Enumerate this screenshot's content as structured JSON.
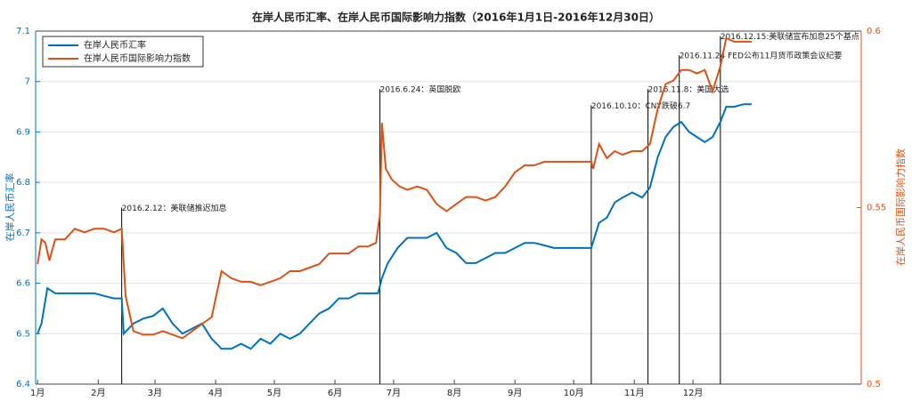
{
  "chart_data": {
    "type": "line",
    "title": "在岸人民币汇率、在岸人民币国际影响力指数（2016年1月1日-2016年12月30日）",
    "ylabel": "在岸人民币汇率",
    "y2label": "在岸人民币国际影响力指数",
    "xlim": [
      0,
      422
    ],
    "xticks": [
      {
        "value": 1,
        "label": "1月"
      },
      {
        "value": 32,
        "label": "2月"
      },
      {
        "value": 61,
        "label": "3月"
      },
      {
        "value": 92,
        "label": "4月"
      },
      {
        "value": 122,
        "label": "5月"
      },
      {
        "value": 153,
        "label": "6月"
      },
      {
        "value": 183,
        "label": "7月"
      },
      {
        "value": 214,
        "label": "8月"
      },
      {
        "value": 245,
        "label": "9月"
      },
      {
        "value": 275,
        "label": "10月"
      },
      {
        "value": 306,
        "label": "11月"
      },
      {
        "value": 336,
        "label": "12月"
      }
    ],
    "ylim": [
      6.4,
      7.1
    ],
    "yticks": [
      6.4,
      6.5,
      6.6,
      6.7,
      6.8,
      6.9,
      7,
      7.1
    ],
    "y2lim": [
      0.5,
      0.6
    ],
    "y2ticks": [
      0.5,
      0.55,
      0.6
    ],
    "grid": true,
    "legend": "upper left",
    "series": [
      {
        "name": "在岸人民币汇率",
        "color": "#0072bd",
        "x": [
          1,
          3,
          6,
          10,
          15,
          20,
          30,
          35,
          40,
          44,
          45,
          50,
          55,
          60,
          65,
          70,
          75,
          80,
          85,
          90,
          95,
          100,
          105,
          110,
          115,
          120,
          125,
          130,
          135,
          140,
          145,
          150,
          155,
          160,
          165,
          170,
          175,
          177,
          180,
          185,
          190,
          195,
          200,
          205,
          210,
          215,
          220,
          225,
          230,
          235,
          240,
          245,
          250,
          255,
          260,
          265,
          270,
          275,
          280,
          284,
          288,
          292,
          296,
          300,
          305,
          310,
          314,
          318,
          322,
          326,
          330,
          334,
          338,
          342,
          346,
          350,
          353,
          357,
          362,
          366
        ],
        "values": [
          6.5,
          6.52,
          6.59,
          6.58,
          6.58,
          6.58,
          6.58,
          6.575,
          6.57,
          6.57,
          6.5,
          6.52,
          6.53,
          6.535,
          6.55,
          6.52,
          6.5,
          6.51,
          6.52,
          6.49,
          6.47,
          6.47,
          6.48,
          6.47,
          6.49,
          6.48,
          6.5,
          6.49,
          6.5,
          6.52,
          6.54,
          6.55,
          6.57,
          6.57,
          6.58,
          6.58,
          6.58,
          6.61,
          6.64,
          6.67,
          6.69,
          6.69,
          6.69,
          6.7,
          6.67,
          6.66,
          6.64,
          6.64,
          6.65,
          6.66,
          6.66,
          6.67,
          6.68,
          6.68,
          6.675,
          6.67,
          6.67,
          6.67,
          6.67,
          6.67,
          6.72,
          6.73,
          6.76,
          6.77,
          6.78,
          6.77,
          6.79,
          6.85,
          6.89,
          6.91,
          6.92,
          6.9,
          6.89,
          6.88,
          6.89,
          6.92,
          6.95,
          6.95,
          6.955,
          6.955
        ]
      },
      {
        "name": "在岸人民币国际影响力指数",
        "color": "#d95319",
        "axis": "y2",
        "x": [
          1,
          3,
          5,
          7,
          10,
          15,
          20,
          25,
          30,
          35,
          40,
          44,
          46,
          50,
          55,
          60,
          65,
          70,
          75,
          80,
          85,
          90,
          95,
          100,
          105,
          110,
          115,
          120,
          125,
          130,
          135,
          140,
          145,
          150,
          155,
          160,
          165,
          170,
          174,
          176,
          177,
          179,
          182,
          186,
          190,
          195,
          200,
          205,
          210,
          215,
          220,
          225,
          230,
          235,
          240,
          245,
          250,
          255,
          260,
          265,
          270,
          275,
          280,
          284,
          285,
          288,
          292,
          296,
          300,
          305,
          310,
          314,
          318,
          322,
          326,
          330,
          334,
          338,
          342,
          346,
          350,
          353,
          357,
          362,
          366
        ],
        "values": [
          0.534,
          0.541,
          0.54,
          0.535,
          0.541,
          0.541,
          0.544,
          0.543,
          0.544,
          0.544,
          0.543,
          0.544,
          0.525,
          0.515,
          0.514,
          0.514,
          0.515,
          0.514,
          0.513,
          0.515,
          0.517,
          0.519,
          0.532,
          0.53,
          0.529,
          0.529,
          0.528,
          0.529,
          0.53,
          0.532,
          0.532,
          0.533,
          0.534,
          0.537,
          0.537,
          0.537,
          0.539,
          0.539,
          0.54,
          0.548,
          0.574,
          0.561,
          0.558,
          0.556,
          0.555,
          0.556,
          0.555,
          0.551,
          0.549,
          0.551,
          0.553,
          0.553,
          0.552,
          0.553,
          0.556,
          0.56,
          0.562,
          0.562,
          0.563,
          0.563,
          0.563,
          0.563,
          0.563,
          0.563,
          0.561,
          0.568,
          0.564,
          0.566,
          0.565,
          0.566,
          0.566,
          0.568,
          0.578,
          0.585,
          0.586,
          0.589,
          0.589,
          0.588,
          0.589,
          0.583,
          0.59,
          0.598,
          0.597,
          0.597,
          0.597
        ]
      }
    ],
    "annotations": [
      {
        "x": 44,
        "y": 6.75,
        "text": "2016.2.12：美联储推迟加息"
      },
      {
        "x": 176,
        "y": 6.985,
        "text": "2016.6.24：英国脱欧"
      },
      {
        "x": 284,
        "y": 6.953,
        "text": "2016.10.10：CNY跌破6.7"
      },
      {
        "x": 313,
        "y": 6.985,
        "text": "2016.11.8：美国大选"
      },
      {
        "x": 329,
        "y": 7.052,
        "text": "2016.11.24 FED公布11月货币政策会议纪要"
      },
      {
        "x": 350,
        "y": 7.09,
        "text": "2016.12.15:美联储宣布加息25个基点"
      }
    ]
  }
}
